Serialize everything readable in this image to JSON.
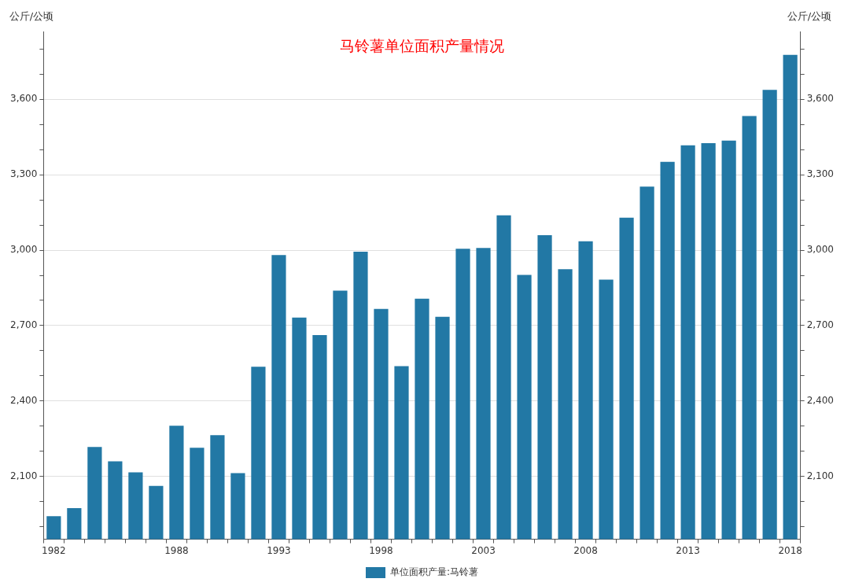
{
  "chart_data": {
    "type": "bar",
    "title": "马铃薯单位面积产量情况",
    "ylabel": "公斤/公顷",
    "y2label": "公斤/公顷",
    "categories": [
      "1982",
      null,
      null,
      null,
      null,
      null,
      "1988",
      null,
      null,
      null,
      null,
      "1993",
      null,
      null,
      null,
      null,
      "1998",
      null,
      null,
      null,
      null,
      "2003",
      null,
      null,
      null,
      null,
      "2008",
      null,
      null,
      null,
      null,
      "2013",
      null,
      null,
      null,
      null,
      "2018"
    ],
    "series": [
      {
        "name": "单位面积产量:马铃薯",
        "color": "#2278a5",
        "values": [
          1942,
          1974,
          2217,
          2160,
          2116,
          2062,
          2302,
          2214,
          2264,
          2113,
          2536,
          2981,
          2732,
          2662,
          2839,
          2994,
          2766,
          2539,
          2807,
          2735,
          3006,
          3009,
          3139,
          2902,
          3060,
          2924,
          3035,
          2883,
          3129,
          3253,
          3351,
          3417,
          3426,
          3436,
          3534,
          3638,
          3777
        ]
      }
    ],
    "ylim": [
      1850,
      3870
    ],
    "yticks": [
      {
        "value": 1900,
        "label": null
      },
      {
        "value": 2000,
        "label": null
      },
      {
        "value": 2100,
        "label": "2,100"
      },
      {
        "value": 2200,
        "label": null
      },
      {
        "value": 2300,
        "label": null
      },
      {
        "value": 2400,
        "label": "2,400"
      },
      {
        "value": 2500,
        "label": null
      },
      {
        "value": 2600,
        "label": null
      },
      {
        "value": 2700,
        "label": "2,700"
      },
      {
        "value": 2800,
        "label": null
      },
      {
        "value": 2900,
        "label": null
      },
      {
        "value": 3000,
        "label": "3,000"
      },
      {
        "value": 3100,
        "label": null
      },
      {
        "value": 3200,
        "label": null
      },
      {
        "value": 3300,
        "label": "3,300"
      },
      {
        "value": 3400,
        "label": null
      },
      {
        "value": 3500,
        "label": null
      },
      {
        "value": 3600,
        "label": "3,600"
      },
      {
        "value": 3700,
        "label": null
      },
      {
        "value": 3800,
        "label": null
      }
    ],
    "y2lim": [
      1850,
      3870
    ],
    "y2ticks": [
      {
        "value": 1900,
        "label": null
      },
      {
        "value": 2000,
        "label": null
      },
      {
        "value": 2100,
        "label": "2,100"
      },
      {
        "value": 2200,
        "label": null
      },
      {
        "value": 2300,
        "label": null
      },
      {
        "value": 2400,
        "label": "2,400"
      },
      {
        "value": 2500,
        "label": null
      },
      {
        "value": 2600,
        "label": null
      },
      {
        "value": 2700,
        "label": "2,700"
      },
      {
        "value": 2800,
        "label": null
      },
      {
        "value": 2900,
        "label": null
      },
      {
        "value": 3000,
        "label": "3,000"
      },
      {
        "value": 3100,
        "label": null
      },
      {
        "value": 3200,
        "label": null
      },
      {
        "value": 3300,
        "label": "3,300"
      },
      {
        "value": 3400,
        "label": null
      },
      {
        "value": 3500,
        "label": null
      },
      {
        "value": 3600,
        "label": "3,600"
      },
      {
        "value": 3700,
        "label": null
      },
      {
        "value": 3800,
        "label": null
      }
    ],
    "grid": "y",
    "legend": "bottom"
  }
}
